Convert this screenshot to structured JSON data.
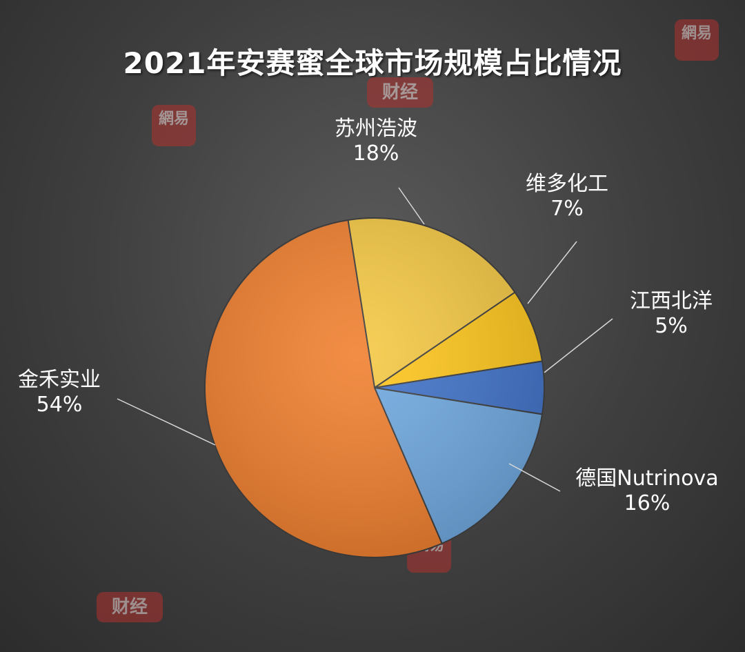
{
  "chart_data": {
    "type": "pie",
    "title": "2021年安赛蜜全球市场规模占比情况",
    "slices": [
      {
        "label": "苏州浩波",
        "value": 18,
        "value_label": "18%",
        "color": "#f5c842"
      },
      {
        "label": "维多化工",
        "value": 7,
        "value_label": "7%",
        "color": "#ffc61a"
      },
      {
        "label": "江西北洋",
        "value": 5,
        "value_label": "5%",
        "color": "#3f72c9"
      },
      {
        "label": "德国Nutrinova",
        "value": 16,
        "value_label": "16%",
        "color": "#6ea8e0"
      },
      {
        "label": "金禾实业",
        "value": 54,
        "value_label": "54%",
        "color": "#f07e2c"
      }
    ]
  },
  "watermarks": {
    "netease": "網易",
    "finance": "财经"
  }
}
